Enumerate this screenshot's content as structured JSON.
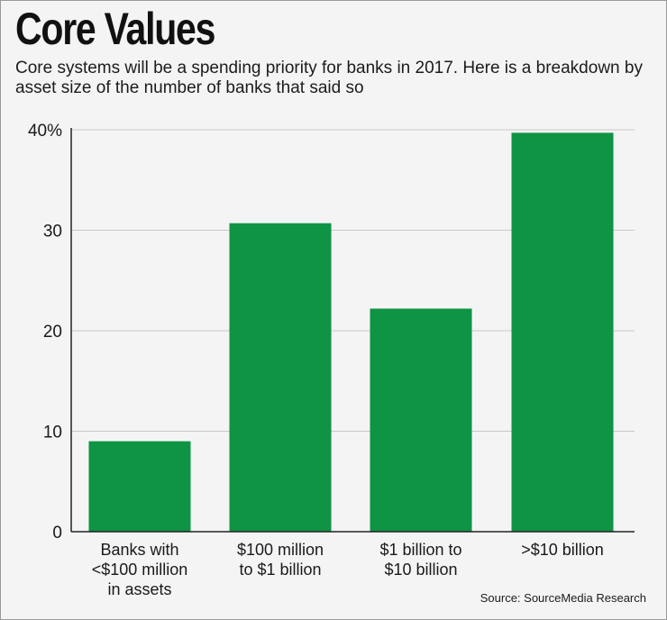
{
  "chart_data": {
    "type": "bar",
    "title": "Core Values",
    "subtitle": "Core systems will be a spending priority for banks in 2017. Here is a breakdown by asset size of the number of banks that said so",
    "categories": [
      [
        "Banks with",
        "<$100 million",
        "in assets"
      ],
      [
        "$100 million",
        "to $1 billion"
      ],
      [
        "$1 billion to",
        "$10 billion"
      ],
      [
        ">$10 billion"
      ]
    ],
    "values": [
      9,
      30.7,
      22.2,
      39.7
    ],
    "ylim": [
      0,
      40
    ],
    "yticks": [
      "0",
      "10",
      "20",
      "30",
      "40%"
    ],
    "ytick_values": [
      0,
      10,
      20,
      30,
      40
    ],
    "grid": true,
    "xlabel": "",
    "ylabel": "",
    "source": "Source: SourceMedia Research",
    "bar_color": "#0e9444",
    "grid_color": "#c8c8c8"
  }
}
